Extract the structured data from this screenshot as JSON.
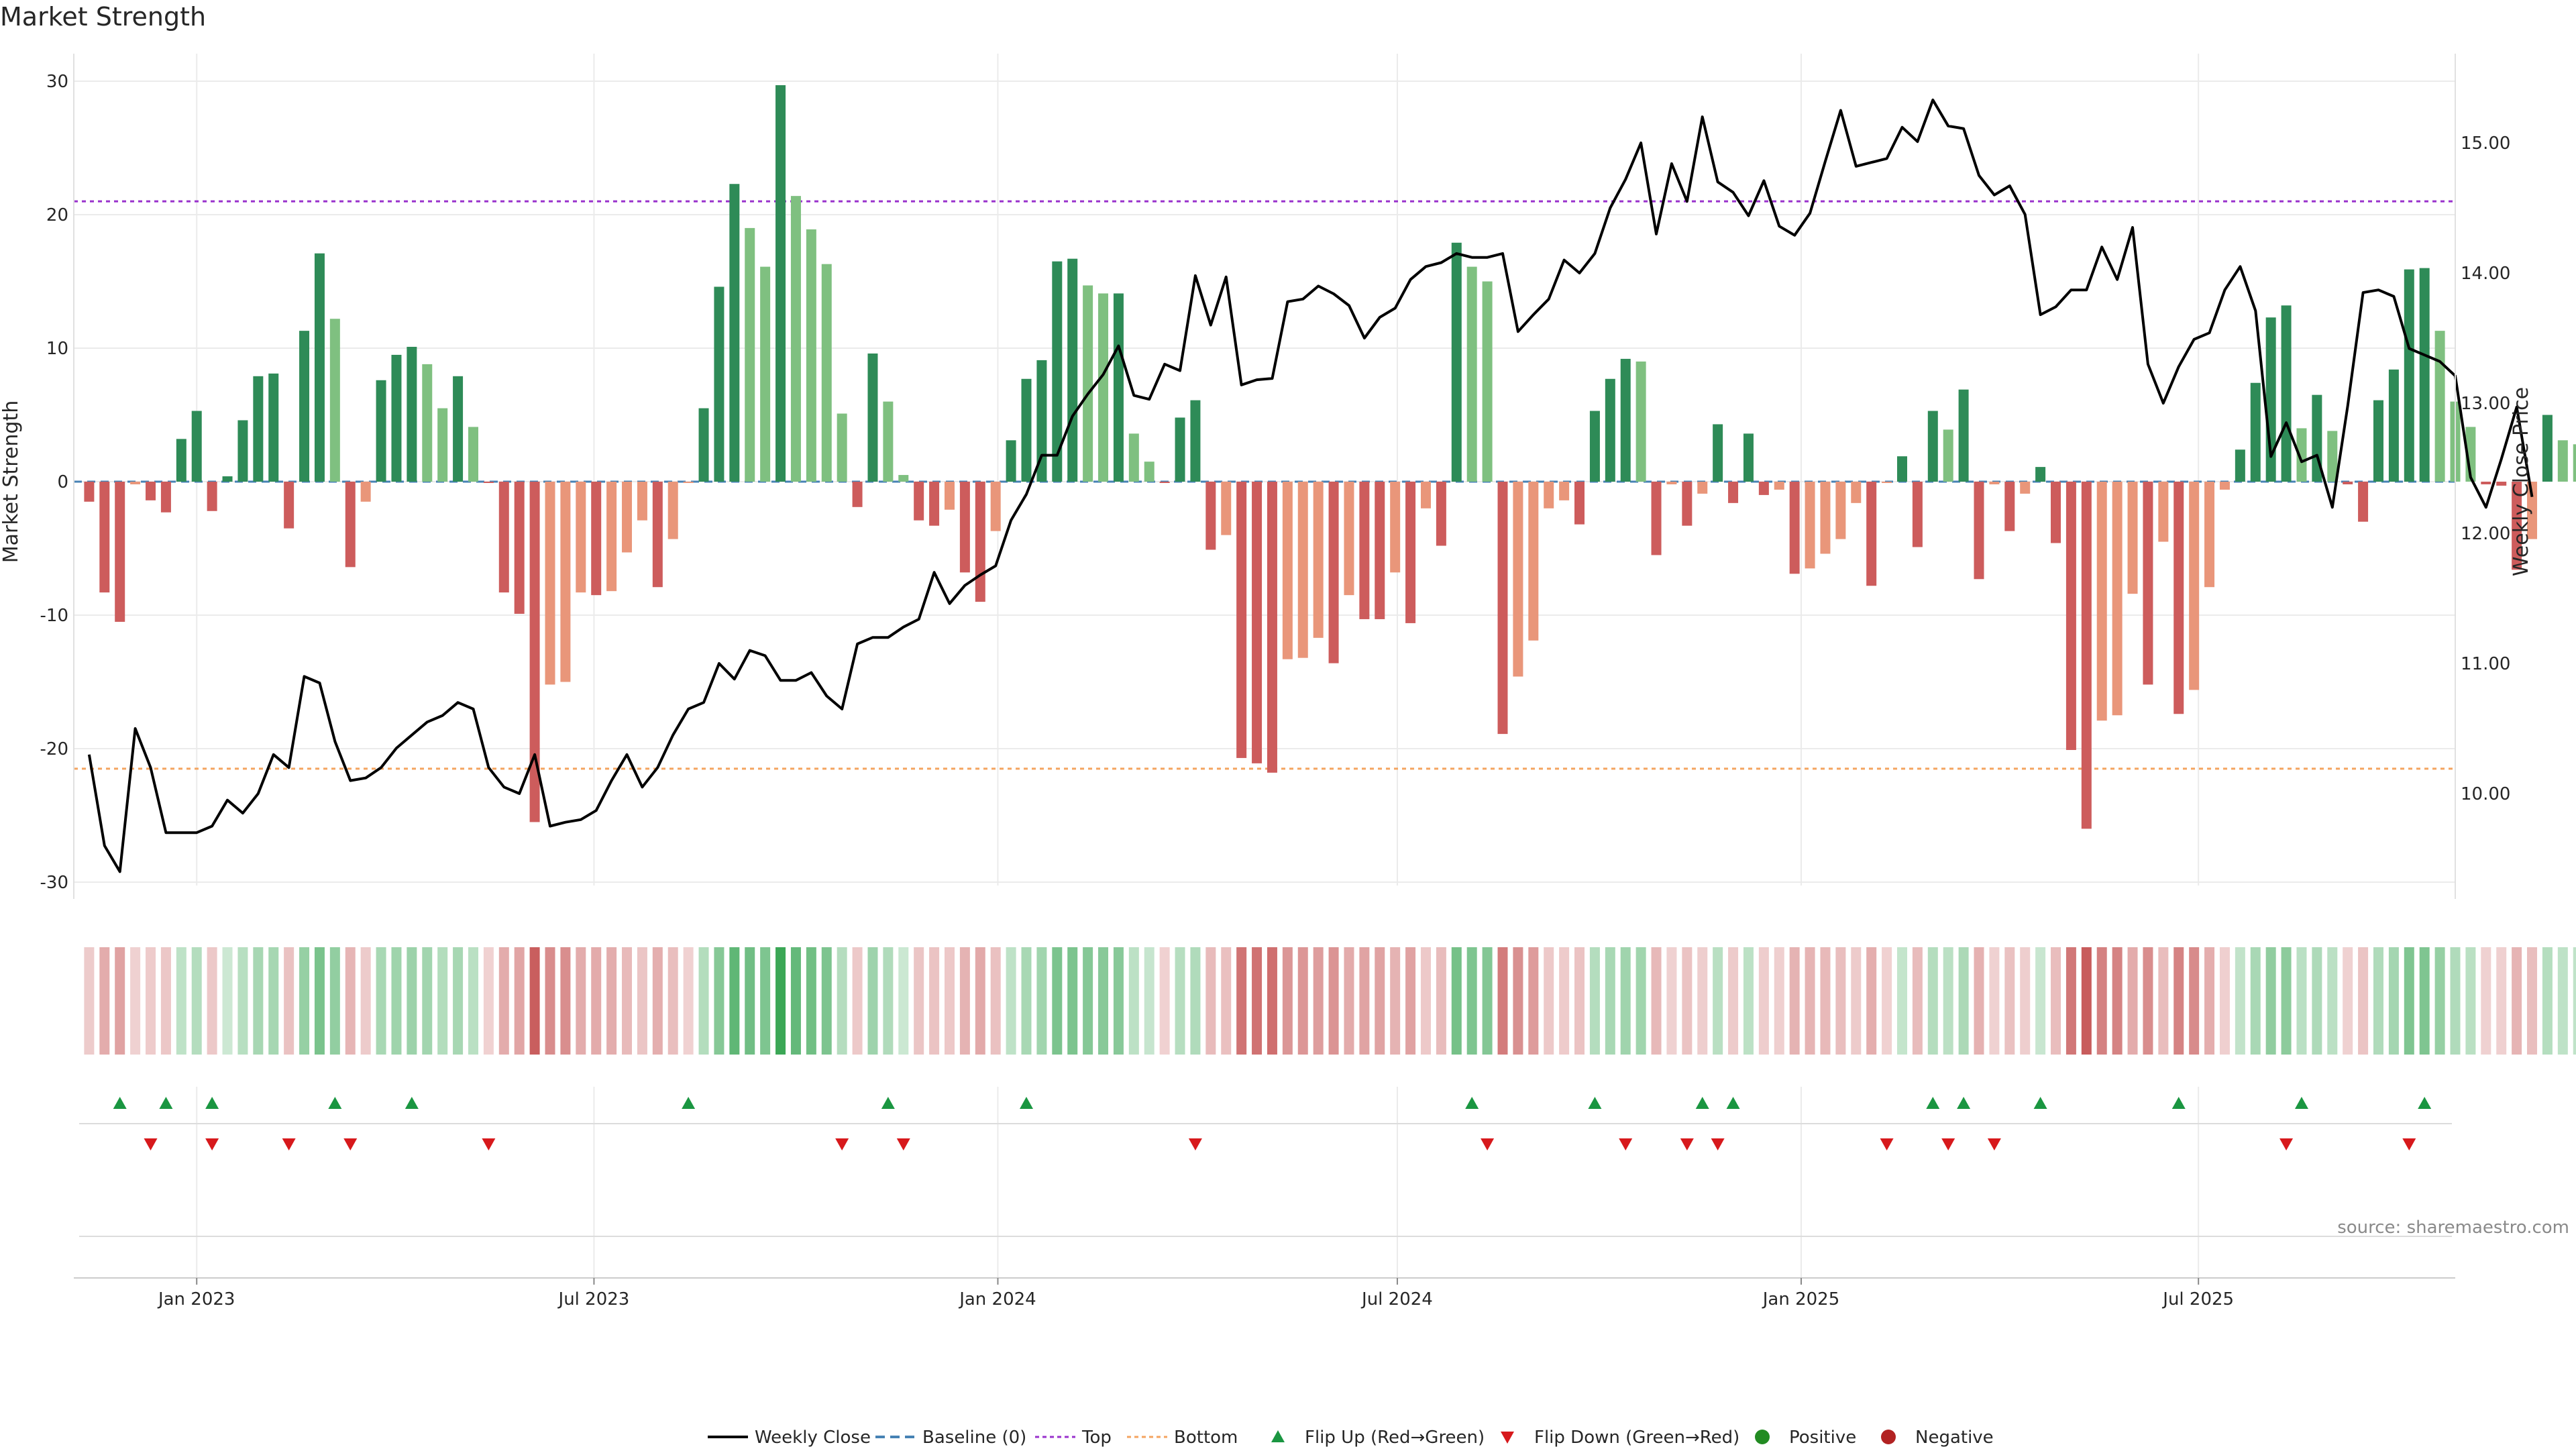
{
  "chart_data": {
    "type": "bar",
    "title": "Market Strength",
    "ylabel": "Market Strength",
    "y2label": "Weekly Close Price",
    "ylim": [
      -32,
      32
    ],
    "y2lim": [
      9.3,
      15.5
    ],
    "yticks": [
      "30",
      "20",
      "10",
      "0",
      "-10",
      "-20",
      "-30"
    ],
    "y2ticks": [
      "15.00",
      "14.00",
      "13.00",
      "12.00",
      "11.00",
      "10.00"
    ],
    "xticks": [
      {
        "label": "Jan 2023",
        "date": "2023-01-01"
      },
      {
        "label": "Jul 2023",
        "date": "2023-07-01"
      },
      {
        "label": "Jan 2024",
        "date": "2024-01-01"
      },
      {
        "label": "Jul 2024",
        "date": "2024-07-01"
      },
      {
        "label": "Jan 2025",
        "date": "2025-01-01"
      },
      {
        "label": "Jul 2025",
        "date": "2025-07-01"
      }
    ],
    "x_start": "2022-11-06",
    "x_end": "2025-10-26",
    "first_week": "2022-11-13",
    "top_level": 21,
    "bottom_level": -21.5,
    "strength": [
      -1.5,
      -8.3,
      -10.5,
      -0.2,
      -1.4,
      -2.3,
      3.2,
      5.3,
      -2.2,
      0.4,
      4.6,
      7.9,
      8.1,
      -3.5,
      11.3,
      17.1,
      12.2,
      -6.4,
      -1.5,
      7.6,
      9.5,
      10.1,
      8.8,
      5.5,
      7.9,
      4.1,
      -0.1,
      -8.3,
      -9.9,
      -25.5,
      -15.2,
      -15.0,
      -8.3,
      -8.5,
      -8.2,
      -5.3,
      -2.9,
      -7.9,
      -4.3,
      -0.1,
      5.5,
      14.6,
      22.3,
      19.0,
      16.1,
      29.7,
      21.4,
      18.9,
      16.3,
      5.1,
      -1.9,
      9.6,
      6.0,
      0.5,
      -2.9,
      -3.3,
      -2.1,
      -6.8,
      -9.0,
      -3.7,
      3.1,
      7.7,
      9.1,
      16.5,
      16.7,
      14.7,
      14.1,
      14.1,
      3.6,
      1.5,
      -0.1,
      4.8,
      6.1,
      -5.1,
      -4.0,
      -20.7,
      -21.1,
      -21.8,
      -13.3,
      -13.2,
      -11.7,
      -13.6,
      -8.5,
      -10.3,
      -10.3,
      -6.8,
      -10.6,
      -2.0,
      -4.8,
      17.9,
      16.1,
      15.0,
      -18.9,
      -14.6,
      -11.9,
      -2.0,
      -1.4,
      -3.2,
      5.3,
      7.7,
      9.2,
      9.0,
      -5.5,
      -0.2,
      -3.3,
      -0.9,
      4.3,
      -1.6,
      3.6,
      -1.0,
      -0.6,
      -6.9,
      -6.5,
      -5.4,
      -4.3,
      -1.6,
      -7.8,
      -0.1,
      1.9,
      -4.9,
      5.3,
      3.9,
      6.9,
      -7.3,
      -0.2,
      -3.7,
      -0.9,
      1.1,
      -4.6,
      -20.1,
      -26.0,
      -17.9,
      -17.5,
      -8.4,
      -15.2,
      -4.5,
      -17.4,
      -15.6,
      -7.9,
      -0.6,
      2.4,
      7.4,
      12.3,
      13.2,
      4.0,
      6.5,
      3.8,
      -0.2,
      -3.0,
      6.1,
      8.4,
      15.9,
      16.0,
      11.3,
      6.0,
      4.1,
      -0.2,
      -0.3,
      -6.6,
      -4.3,
      5.0,
      3.1,
      2.8
    ],
    "close": [
      10.3,
      9.6,
      9.4,
      10.5,
      10.2,
      9.7,
      9.7,
      9.7,
      9.75,
      9.95,
      9.85,
      10.0,
      10.3,
      10.2,
      10.9,
      10.85,
      10.4,
      10.1,
      10.12,
      10.2,
      10.35,
      10.45,
      10.55,
      10.6,
      10.7,
      10.65,
      10.2,
      10.05,
      10.0,
      10.3,
      9.75,
      9.78,
      9.8,
      9.87,
      10.1,
      10.3,
      10.05,
      10.2,
      10.45,
      10.65,
      10.7,
      11.0,
      10.88,
      11.1,
      11.06,
      10.87,
      10.87,
      10.93,
      10.75,
      10.65,
      11.15,
      11.2,
      11.2,
      11.28,
      11.34,
      11.7,
      11.46,
      11.6,
      11.68,
      11.75,
      12.1,
      12.3,
      12.6,
      12.6,
      12.9,
      13.07,
      13.22,
      13.44,
      13.06,
      13.03,
      13.3,
      13.25,
      13.98,
      13.6,
      13.97,
      13.14,
      13.18,
      13.19,
      13.78,
      13.8,
      13.9,
      13.84,
      13.75,
      13.5,
      13.66,
      13.73,
      13.95,
      14.05,
      14.08,
      14.15,
      14.12,
      14.12,
      14.15,
      13.55,
      13.68,
      13.8,
      14.1,
      14.0,
      14.15,
      14.5,
      14.72,
      15.0,
      14.3,
      14.84,
      14.55,
      15.2,
      14.7,
      14.62,
      14.44,
      14.71,
      14.36,
      14.29,
      14.46,
      14.86,
      15.25,
      14.82,
      14.85,
      14.88,
      15.12,
      15.01,
      15.33,
      15.13,
      15.11,
      14.75,
      14.6,
      14.67,
      14.45,
      13.68,
      13.74,
      13.87,
      13.87,
      14.2,
      13.95,
      14.35,
      13.3,
      13.0,
      13.28,
      13.49,
      13.54,
      13.87,
      14.05,
      13.71,
      12.59,
      12.85,
      12.55,
      12.6,
      12.2,
      12.98,
      13.85,
      13.87,
      13.82,
      13.42,
      13.37,
      13.32,
      13.21,
      12.43,
      12.2,
      12.57,
      12.97,
      12.28
    ],
    "flip_up_dates": [
      "2022-11-27",
      "2022-12-18",
      "2023-01-08",
      "2023-03-05",
      "2023-04-09",
      "2023-08-13",
      "2023-11-12",
      "2024-01-14",
      "2024-08-04",
      "2024-09-29",
      "2024-11-17",
      "2024-12-01",
      "2025-03-02",
      "2025-03-16",
      "2025-04-20",
      "2025-06-22",
      "2025-08-17",
      "2025-10-12"
    ],
    "flip_down_dates": [
      "2022-12-11",
      "2023-01-08",
      "2023-02-12",
      "2023-03-12",
      "2023-05-14",
      "2023-10-22",
      "2023-11-19",
      "2024-03-31",
      "2024-08-11",
      "2024-10-13",
      "2024-11-10",
      "2024-11-24",
      "2025-02-09",
      "2025-03-09",
      "2025-03-30",
      "2025-08-10",
      "2025-10-05"
    ],
    "legend": {
      "weekly_close": "Weekly Close",
      "baseline": "Baseline (0)",
      "top": "Top",
      "bottom": "Bottom",
      "flip_up": "Flip Up (Red→Green)",
      "flip_down": "Flip Down (Green→Red)",
      "positive": "Positive",
      "negative": "Negative"
    },
    "source": "source: sharemaestro.com",
    "colors": {
      "strong_pos": "#2e8b57",
      "weak_pos": "#7fc080",
      "strong_neg": "#cd5c5c",
      "weak_neg": "#e9967a",
      "line": "#000000",
      "baseline": "#4682b4",
      "top": "#9932cc",
      "bottom": "#f4a460",
      "flip_up": "#1a9641",
      "flip_down": "#d7191c",
      "positive_dot": "#228b22",
      "negative_dot": "#b22222",
      "grid": "#ebebeb"
    }
  }
}
